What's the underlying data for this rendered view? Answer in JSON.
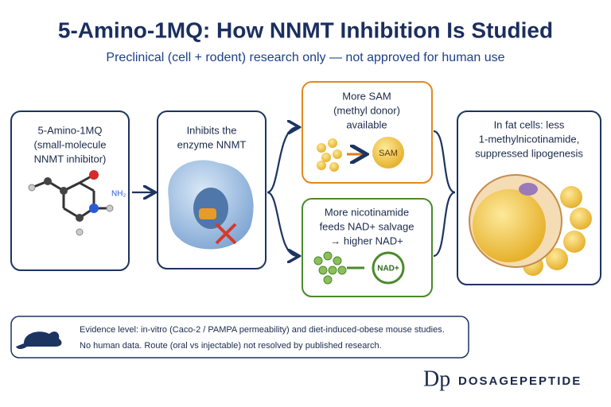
{
  "header": {
    "title": "5-Amino-1MQ: How NNMT Inhibition Is Studied",
    "subtitle": "Preclinical (cell + rodent) research only — not approved for human use"
  },
  "nodes": [
    {
      "lines": [
        "5-Amino-1MQ",
        "(small-molecule",
        "NNMT inhibitor)"
      ],
      "icon_label": "NH₂"
    },
    {
      "lines": [
        "Inhibits the",
        "enzyme NNMT"
      ]
    },
    {
      "lines": [
        "More SAM",
        "(methyl donor)",
        "available"
      ],
      "icon_label": "SAM"
    },
    {
      "lines": [
        "More nicotinamide",
        "feeds NAD+ salvage",
        "→ higher NAD+"
      ],
      "icon_label": "NAD+"
    },
    {
      "lines": [
        "In fat cells: less",
        "1-methylnicotinamide,",
        "suppressed lipogenesis"
      ]
    }
  ],
  "evidence": {
    "lines": [
      "Evidence level: in-vitro (Caco-2 / PAMPA permeability) and diet-induced-obese mouse studies.",
      "No human data. Route (oral vs injectable) not resolved by published research."
    ]
  },
  "brand": {
    "logo": "Dp",
    "name_part1": "DOSAGE",
    "name_part2": "PEPTIDE"
  }
}
